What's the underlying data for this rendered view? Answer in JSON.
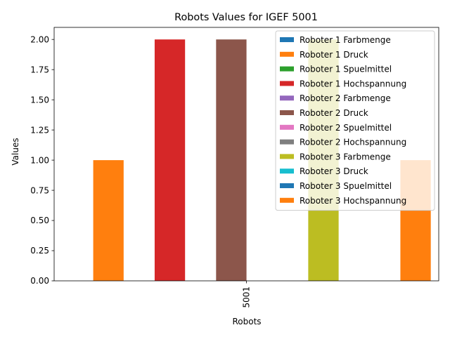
{
  "chart_data": {
    "type": "bar",
    "title": "Robots Values for IGEF 5001",
    "xlabel": "Robots",
    "ylabel": "Values",
    "categories": [
      "5001"
    ],
    "ylim": [
      0,
      2.1
    ],
    "yticks": [
      "0.00",
      "0.25",
      "0.50",
      "0.75",
      "1.00",
      "1.25",
      "1.50",
      "1.75",
      "2.00"
    ],
    "ytick_values": [
      0,
      0.25,
      0.5,
      0.75,
      1.0,
      1.25,
      1.5,
      1.75,
      2.0
    ],
    "grid": false,
    "legend_position": "top-right",
    "series": [
      {
        "name": "Roboter 1 Farbmenge",
        "values": [
          0
        ],
        "color": "#1f77b4"
      },
      {
        "name": "Roboter 1 Druck",
        "values": [
          1
        ],
        "color": "#ff7f0e"
      },
      {
        "name": "Roboter 1 Spuelmittel",
        "values": [
          0
        ],
        "color": "#2ca02c"
      },
      {
        "name": "Roboter 1 Hochspannung",
        "values": [
          2
        ],
        "color": "#d62728"
      },
      {
        "name": "Roboter 2 Farbmenge",
        "values": [
          0
        ],
        "color": "#9467bd"
      },
      {
        "name": "Roboter 2 Druck",
        "values": [
          2
        ],
        "color": "#8c564b"
      },
      {
        "name": "Roboter 2 Spuelmittel",
        "values": [
          0
        ],
        "color": "#e377c2"
      },
      {
        "name": "Roboter 2 Hochspannung",
        "values": [
          0
        ],
        "color": "#7f7f7f"
      },
      {
        "name": "Roboter 3 Farbmenge",
        "values": [
          2
        ],
        "color": "#bcbd22"
      },
      {
        "name": "Roboter 3 Druck",
        "values": [
          0
        ],
        "color": "#17becf"
      },
      {
        "name": "Roboter 3 Spuelmittel",
        "values": [
          0
        ],
        "color": "#1f77b4"
      },
      {
        "name": "Roboter 3 Hochspannung",
        "values": [
          1
        ],
        "color": "#ff7f0e"
      }
    ]
  }
}
